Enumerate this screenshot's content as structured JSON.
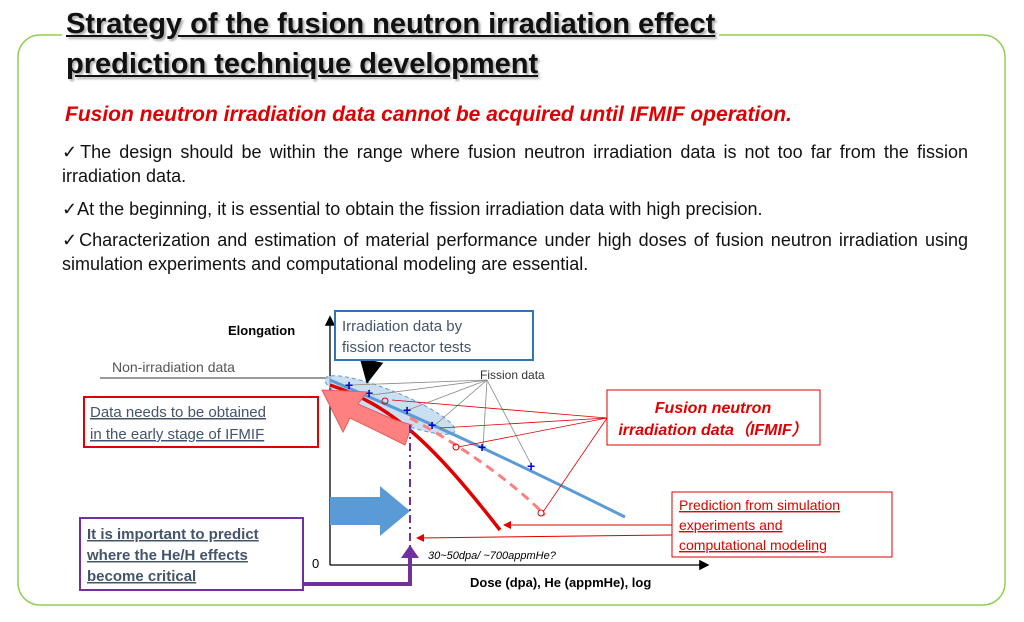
{
  "header": {
    "title": [
      "Strategy of the fusion neutron irradiation effect",
      "prediction technique development"
    ]
  },
  "headline": "Fusion neutron irradiation data cannot be acquired until IFMIF operation.",
  "bullets": [
    "✓The design should be within the range where fusion neutron irradiation data is not too far from the fission irradiation data.",
    "✓At the beginning, it is essential to obtain the fission irradiation data with high precision.",
    "✓Characterization and estimation of material performance under high doses of fusion neutron irradiation using simulation experiments and computational modeling are essential."
  ],
  "diagram": {
    "y_axis_label": "Elongation",
    "x_axis_label": "Dose (dpa), He (appmHe),  log",
    "origin_label": "0",
    "non_irradiation_label": "Non-irradiation data",
    "fission_data_label": "Fission data",
    "dose_note": "30~50dpa/  ~700appmHe?",
    "fission_box": {
      "lines": [
        "Irradiation data by",
        "fission reactor tests"
      ]
    },
    "early_box": {
      "lines": [
        "Data needs to be obtained",
        "in the early stage of IFMIF"
      ]
    },
    "fusion_box": {
      "lines": [
        "Fusion neutron",
        "irradiation data（IFMIF）"
      ]
    },
    "prediction_box": {
      "lines": [
        "Prediction from simulation",
        "experiments and",
        "computational modeling"
      ]
    },
    "critical_box": {
      "lines": [
        "It is important to predict",
        "where the He/H effects",
        "become critical"
      ]
    }
  }
}
